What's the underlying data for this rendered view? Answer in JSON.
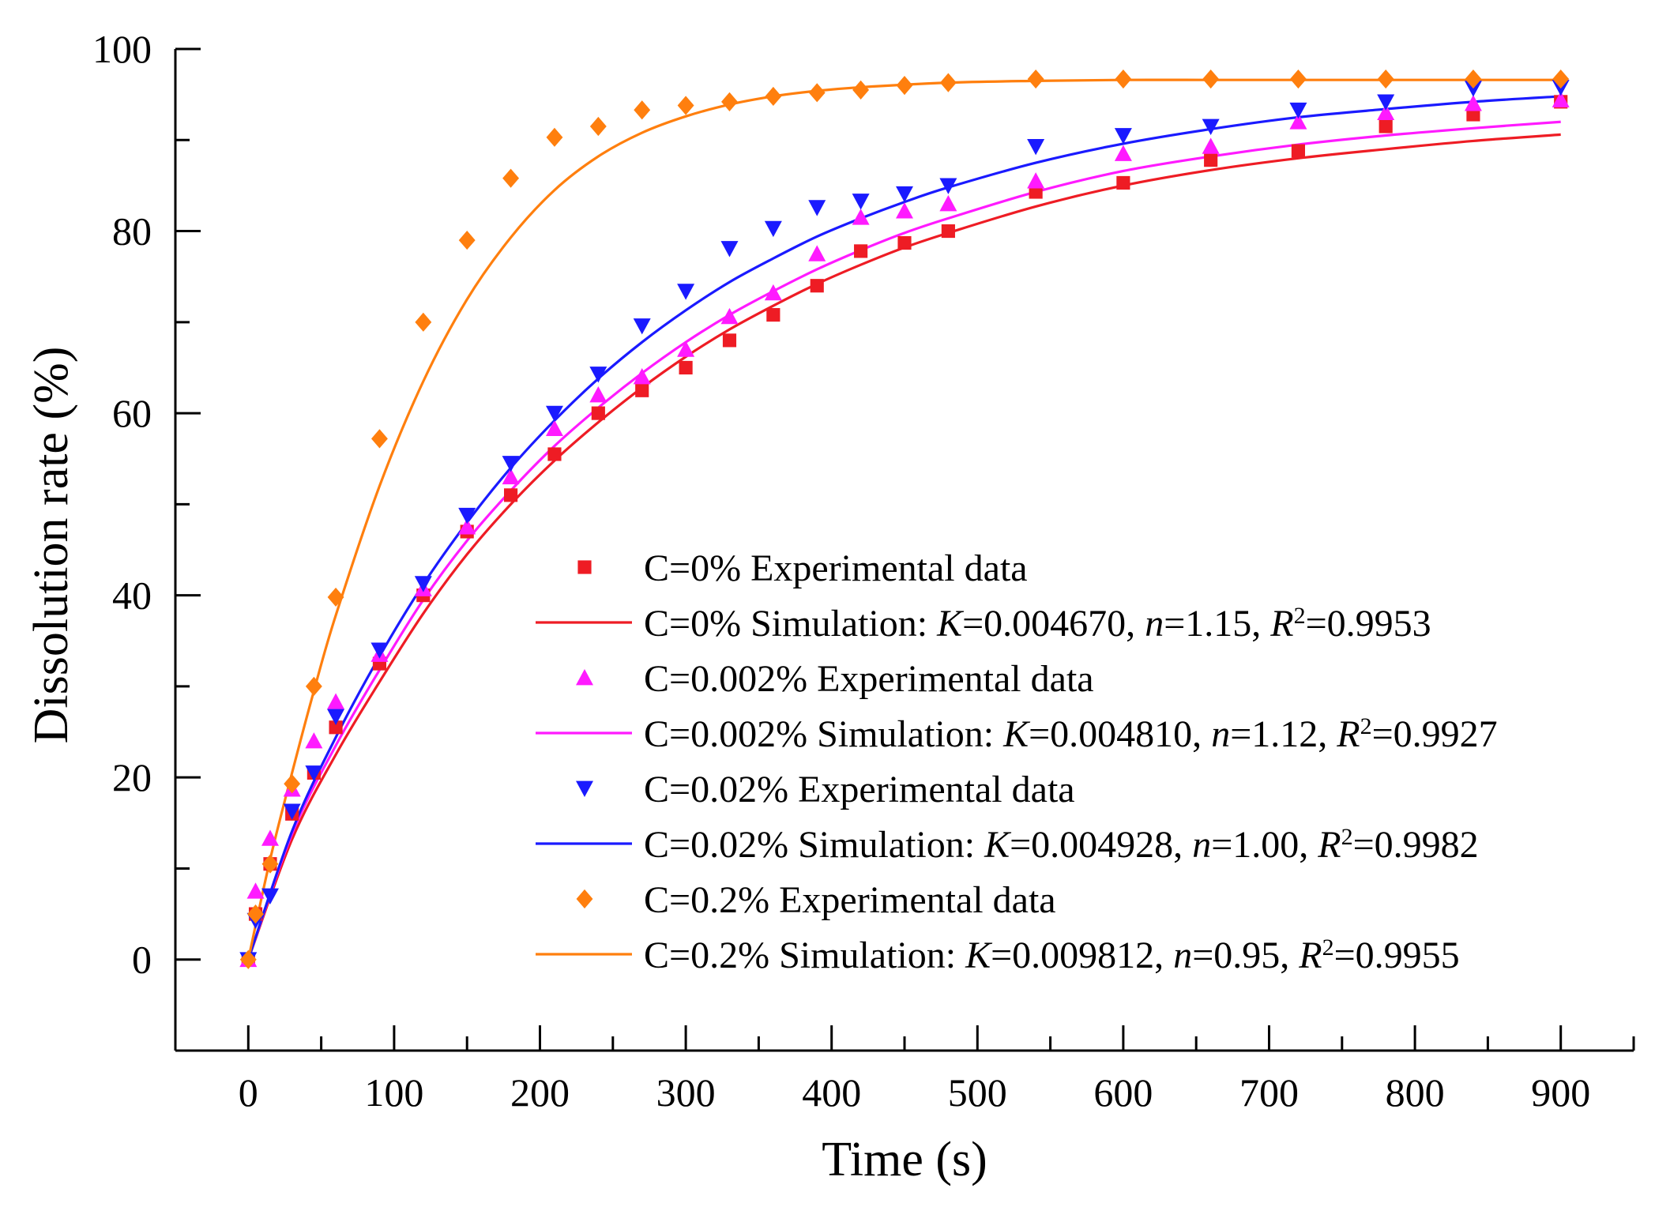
{
  "chart_data": {
    "type": "scatter",
    "xlabel": "Time (s)",
    "ylabel": "Dissolution rate (%)",
    "xlim": [
      -50,
      950
    ],
    "ylim": [
      -10,
      100
    ],
    "xticks": [
      0,
      100,
      200,
      300,
      400,
      500,
      600,
      700,
      800,
      900
    ],
    "yticks": [
      0,
      20,
      40,
      60,
      80,
      100
    ],
    "grid": false,
    "legend_position": "bottom-right",
    "series": [
      {
        "name": "C=0% Experimental data",
        "kind": "points",
        "marker": "square",
        "color": "#ee1c24",
        "x": [
          0,
          5,
          15,
          30,
          45,
          60,
          90,
          120,
          150,
          180,
          210,
          240,
          270,
          300,
          330,
          360,
          390,
          420,
          450,
          480,
          540,
          600,
          660,
          720,
          780,
          840,
          900
        ],
        "y": [
          0,
          5,
          10.5,
          16,
          20.5,
          25.5,
          32.5,
          40,
          47,
          51,
          55.5,
          60,
          62.5,
          65,
          68,
          70.8,
          74,
          77.8,
          78.7,
          80,
          84.3,
          85.3,
          87.8,
          88.8,
          91.5,
          92.8,
          94.2
        ]
      },
      {
        "name": "C=0% Simulation:",
        "kind": "line",
        "color": "#ee1c24",
        "params": {
          "K": "0.004670",
          "n": "1.15",
          "R2": "0.9953"
        },
        "x": [
          0,
          30,
          60,
          90,
          120,
          150,
          180,
          210,
          240,
          270,
          300,
          330,
          360,
          390,
          420,
          450,
          480,
          540,
          600,
          660,
          720,
          780,
          840,
          900
        ],
        "y": [
          0,
          13.2,
          22.5,
          30.5,
          38,
          44.5,
          50,
          54.8,
          59,
          62.8,
          66.2,
          69.2,
          71.8,
          74.2,
          76.3,
          78.2,
          79.8,
          82.7,
          85,
          86.7,
          88,
          89,
          89.9,
          90.6
        ]
      },
      {
        "name": "C=0.002% Experimental data",
        "kind": "points",
        "marker": "triangle-up",
        "color": "#ff1aff",
        "x": [
          0,
          5,
          15,
          30,
          45,
          60,
          90,
          120,
          150,
          180,
          210,
          240,
          270,
          300,
          330,
          360,
          390,
          420,
          450,
          480,
          540,
          600,
          660,
          720,
          780,
          840,
          900
        ],
        "y": [
          0,
          7.5,
          13.3,
          18.7,
          24,
          28.3,
          33.5,
          40.7,
          47.5,
          53,
          58.3,
          62,
          64,
          67,
          70.6,
          73.2,
          77.5,
          81.5,
          82.2,
          83,
          85.5,
          88.5,
          89.3,
          92,
          93,
          94,
          94.4
        ]
      },
      {
        "name": "C=0.002% Simulation:",
        "kind": "line",
        "color": "#ff1aff",
        "params": {
          "K": "0.004810",
          "n": "1.12",
          "R2": "0.9927"
        },
        "x": [
          0,
          30,
          60,
          90,
          120,
          150,
          180,
          210,
          240,
          270,
          300,
          330,
          360,
          390,
          420,
          450,
          480,
          540,
          600,
          660,
          720,
          780,
          840,
          900
        ],
        "y": [
          0,
          13.8,
          23.5,
          31.8,
          39.5,
          46,
          51.5,
          56.4,
          60.6,
          64.4,
          67.8,
          70.8,
          73.4,
          75.8,
          77.9,
          79.8,
          81.4,
          84.3,
          86.6,
          88.2,
          89.5,
          90.5,
          91.3,
          92
        ]
      },
      {
        "name": "C=0.02% Experimental data",
        "kind": "points",
        "marker": "triangle-down",
        "color": "#1a1aff",
        "x": [
          0,
          5,
          15,
          30,
          45,
          60,
          90,
          120,
          150,
          180,
          210,
          240,
          270,
          300,
          330,
          360,
          390,
          420,
          450,
          480,
          540,
          600,
          660,
          720,
          780,
          840,
          900
        ],
        "y": [
          0,
          4.3,
          7,
          16.3,
          20.5,
          26.7,
          34,
          41.3,
          48.8,
          54.5,
          60,
          64.3,
          69.6,
          73.4,
          78.1,
          80.3,
          82.6,
          83.3,
          84.1,
          85,
          89.3,
          90.5,
          91.5,
          93.3,
          94.2,
          95.7,
          95.8
        ]
      },
      {
        "name": "C=0.02% Simulation:",
        "kind": "line",
        "color": "#1a1aff",
        "params": {
          "K": "0.004928",
          "n": "1.00",
          "R2": "0.9982"
        },
        "x": [
          0,
          30,
          60,
          90,
          120,
          150,
          180,
          210,
          240,
          270,
          300,
          330,
          360,
          390,
          420,
          450,
          480,
          540,
          600,
          660,
          720,
          780,
          840,
          900
        ],
        "y": [
          0,
          14.1,
          24.4,
          33.3,
          41.2,
          48,
          54,
          59.2,
          63.8,
          67.8,
          71.3,
          74.4,
          77,
          79.4,
          81.4,
          83.2,
          84.8,
          87.5,
          89.6,
          91.2,
          92.5,
          93.4,
          94.2,
          94.8
        ]
      },
      {
        "name": "C=0.2% Experimental data",
        "kind": "points",
        "marker": "diamond",
        "color": "#ff7f0e",
        "x": [
          0,
          5,
          15,
          30,
          45,
          60,
          90,
          120,
          150,
          180,
          210,
          240,
          270,
          300,
          330,
          360,
          390,
          420,
          450,
          480,
          540,
          600,
          660,
          720,
          780,
          840,
          900
        ],
        "y": [
          0,
          5,
          10.5,
          19.3,
          30,
          39.8,
          57.2,
          70,
          79,
          85.8,
          90.3,
          91.5,
          93.3,
          93.8,
          94.2,
          94.8,
          95.2,
          95.5,
          96,
          96.3,
          96.7,
          96.7,
          96.7,
          96.7,
          96.7,
          96.7,
          96.7
        ]
      },
      {
        "name": "C=0.2% Simulation:",
        "kind": "line",
        "color": "#ff7f0e",
        "params": {
          "K": "0.009812",
          "n": "0.95",
          "R2": "0.9955"
        },
        "x": [
          0,
          15,
          30,
          45,
          60,
          90,
          120,
          150,
          180,
          210,
          240,
          270,
          300,
          330,
          360,
          390,
          420,
          480,
          540,
          600,
          660,
          720,
          780,
          840,
          900
        ],
        "y": [
          0,
          11,
          20.5,
          29.5,
          37.8,
          52,
          63.5,
          72.5,
          79.3,
          84.5,
          88.2,
          90.8,
          92.6,
          93.9,
          94.8,
          95.4,
          95.8,
          96.3,
          96.5,
          96.6,
          96.6,
          96.6,
          96.6,
          96.6,
          96.6
        ]
      }
    ]
  }
}
